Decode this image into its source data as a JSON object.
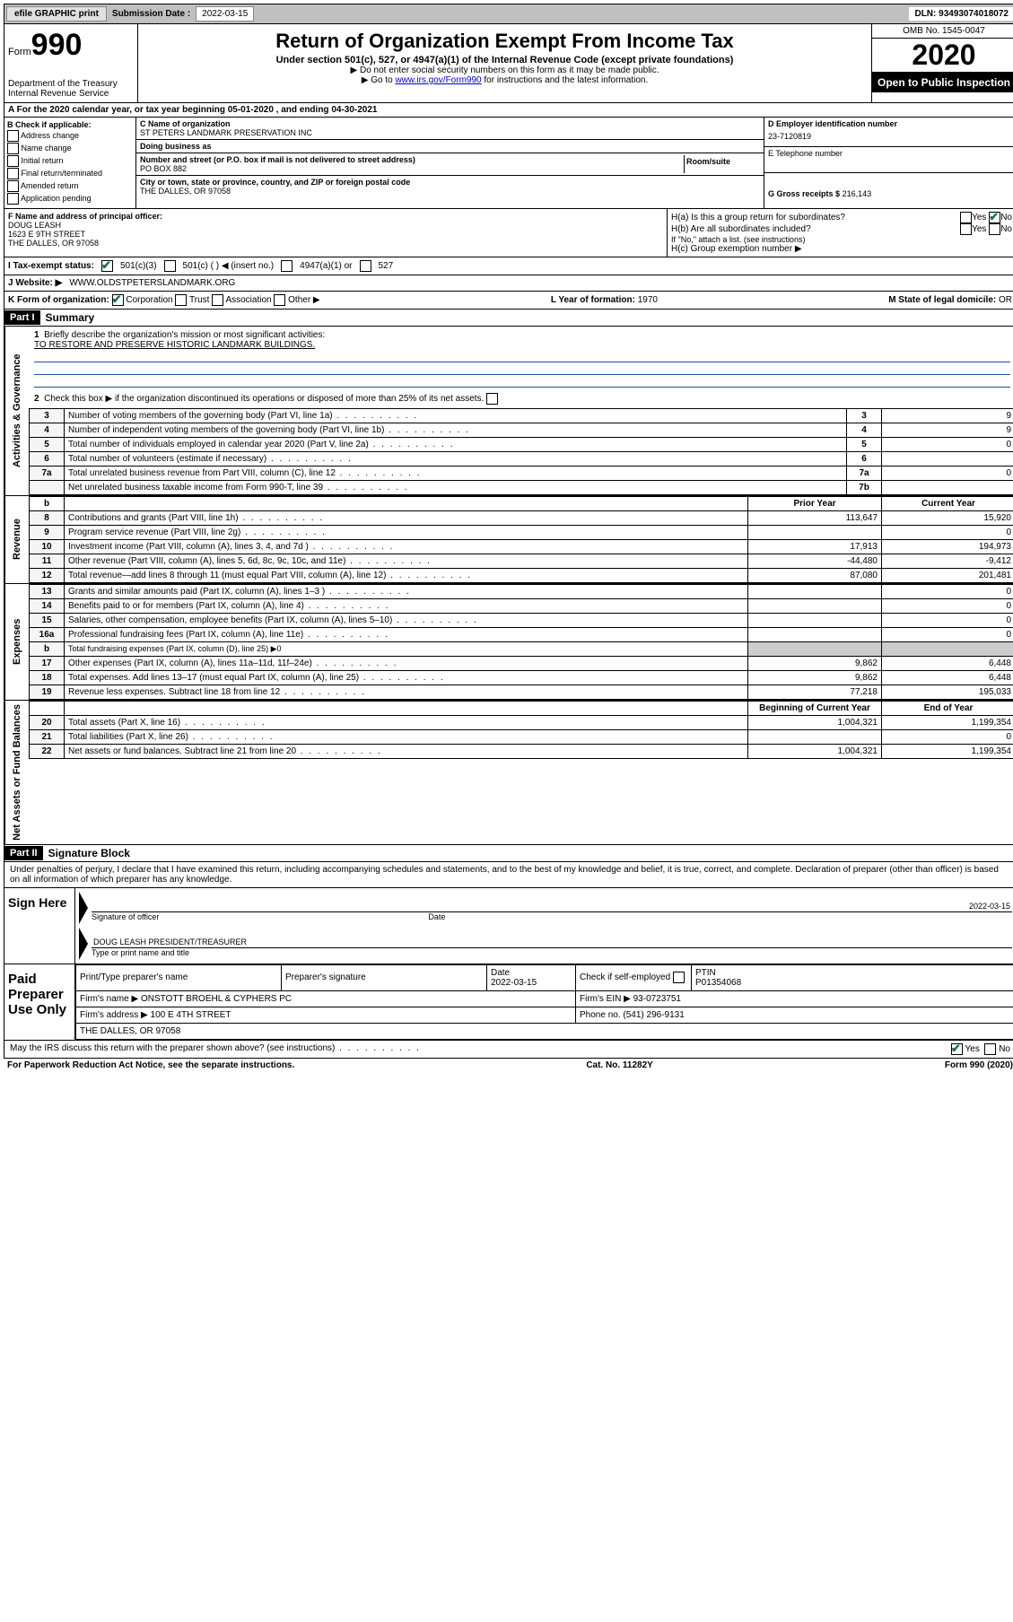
{
  "topbar": {
    "efile": "efile GRAPHIC print",
    "sub_label": "Submission Date :",
    "sub_date": "2022-03-15",
    "dln": "DLN: 93493074018072"
  },
  "header": {
    "form_word": "Form",
    "form_num": "990",
    "dept": "Department of the Treasury",
    "irs": "Internal Revenue Service",
    "title": "Return of Organization Exempt From Income Tax",
    "subtitle": "Under section 501(c), 527, or 4947(a)(1) of the Internal Revenue Code (except private foundations)",
    "note1": "▶ Do not enter social security numbers on this form as it may be made public.",
    "note2_pre": "▶ Go to ",
    "note2_link": "www.irs.gov/Form990",
    "note2_post": " for instructions and the latest information.",
    "omb": "OMB No. 1545-0047",
    "year": "2020",
    "inspection": "Open to Public Inspection"
  },
  "period": "A For the 2020 calendar year, or tax year beginning 05-01-2020   , and ending 04-30-2021",
  "box_b": {
    "title": "B Check if applicable:",
    "addr": "Address change",
    "name": "Name change",
    "initial": "Initial return",
    "final": "Final return/terminated",
    "amended": "Amended return",
    "pending": "Application pending"
  },
  "box_c": {
    "name_lbl": "C Name of organization",
    "name": "ST PETERS LANDMARK PRESERVATION INC",
    "dba_lbl": "Doing business as",
    "dba": "",
    "street_lbl": "Number and street (or P.O. box if mail is not delivered to street address)",
    "street": "PO BOX 882",
    "suite_lbl": "Room/suite",
    "city_lbl": "City or town, state or province, country, and ZIP or foreign postal code",
    "city": "THE DALLES, OR  97058"
  },
  "box_d": {
    "ein_lbl": "D Employer identification number",
    "ein": "23-7120819",
    "phone_lbl": "E Telephone number",
    "phone": "",
    "gross_lbl": "G Gross receipts $",
    "gross": "216,143"
  },
  "box_f": {
    "lbl": "F Name and address of principal officer:",
    "name": "DOUG LEASH",
    "street": "1623 E 9TH STREET",
    "city": "THE DALLES, OR  97058"
  },
  "box_h": {
    "ha": "H(a)  Is this a group return for subordinates?",
    "hb": "H(b)  Are all subordinates included?",
    "hb_note": "If \"No,\" attach a list. (see instructions)",
    "hc": "H(c)  Group exemption number ▶",
    "yes": "Yes",
    "no": "No"
  },
  "box_i": {
    "lbl": "I Tax-exempt status:",
    "o1": "501(c)(3)",
    "o2": "501(c) (  ) ◀ (insert no.)",
    "o3": "4947(a)(1) or",
    "o4": "527"
  },
  "box_j": {
    "lbl": "J Website: ▶",
    "val": "WWW.OLDSTPETERSLANDMARK.ORG"
  },
  "box_k": {
    "lbl": "K Form of organization:",
    "corp": "Corporation",
    "trust": "Trust",
    "assoc": "Association",
    "other": "Other ▶",
    "l_lbl": "L Year of formation:",
    "l_val": "1970",
    "m_lbl": "M State of legal domicile:",
    "m_val": "OR"
  },
  "part1": {
    "hdr": "Part I",
    "title": "Summary",
    "q1": "Briefly describe the organization's mission or most significant activities:",
    "mission": "TO RESTORE AND PRESERVE HISTORIC LANDMARK BUILDINGS.",
    "q2": "Check this box ▶       if the organization discontinued its operations or disposed of more than 25% of its net assets.",
    "side_gov": "Activities & Governance",
    "side_rev": "Revenue",
    "side_exp": "Expenses",
    "side_net": "Net Assets or Fund Balances"
  },
  "gov_rows": [
    {
      "n": "3",
      "t": "Number of voting members of the governing body (Part VI, line 1a)",
      "ln": "3",
      "v": "9"
    },
    {
      "n": "4",
      "t": "Number of independent voting members of the governing body (Part VI, line 1b)",
      "ln": "4",
      "v": "9"
    },
    {
      "n": "5",
      "t": "Total number of individuals employed in calendar year 2020 (Part V, line 2a)",
      "ln": "5",
      "v": "0"
    },
    {
      "n": "6",
      "t": "Total number of volunteers (estimate if necessary)",
      "ln": "6",
      "v": ""
    },
    {
      "n": "7a",
      "t": "Total unrelated business revenue from Part VIII, column (C), line 12",
      "ln": "7a",
      "v": "0"
    },
    {
      "n": "",
      "t": "Net unrelated business taxable income from Form 990-T, line 39",
      "ln": "7b",
      "v": ""
    }
  ],
  "rev_hdr": {
    "prior": "Prior Year",
    "current": "Current Year"
  },
  "rev_rows": [
    {
      "n": "8",
      "t": "Contributions and grants (Part VIII, line 1h)",
      "p": "113,647",
      "c": "15,920"
    },
    {
      "n": "9",
      "t": "Program service revenue (Part VIII, line 2g)",
      "p": "",
      "c": "0"
    },
    {
      "n": "10",
      "t": "Investment income (Part VIII, column (A), lines 3, 4, and 7d )",
      "p": "17,913",
      "c": "194,973"
    },
    {
      "n": "11",
      "t": "Other revenue (Part VIII, column (A), lines 5, 6d, 8c, 9c, 10c, and 11e)",
      "p": "-44,480",
      "c": "-9,412"
    },
    {
      "n": "12",
      "t": "Total revenue—add lines 8 through 11 (must equal Part VIII, column (A), line 12)",
      "p": "87,080",
      "c": "201,481"
    }
  ],
  "exp_rows": [
    {
      "n": "13",
      "t": "Grants and similar amounts paid (Part IX, column (A), lines 1–3 )",
      "p": "",
      "c": "0"
    },
    {
      "n": "14",
      "t": "Benefits paid to or for members (Part IX, column (A), line 4)",
      "p": "",
      "c": "0"
    },
    {
      "n": "15",
      "t": "Salaries, other compensation, employee benefits (Part IX, column (A), lines 5–10)",
      "p": "",
      "c": "0"
    },
    {
      "n": "16a",
      "t": "Professional fundraising fees (Part IX, column (A), line 11e)",
      "p": "",
      "c": "0"
    },
    {
      "n": "b",
      "t": "Total fundraising expenses (Part IX, column (D), line 25) ▶0",
      "p": "—",
      "c": "—"
    },
    {
      "n": "17",
      "t": "Other expenses (Part IX, column (A), lines 11a–11d, 11f–24e)",
      "p": "9,862",
      "c": "6,448"
    },
    {
      "n": "18",
      "t": "Total expenses. Add lines 13–17 (must equal Part IX, column (A), line 25)",
      "p": "9,862",
      "c": "6,448"
    },
    {
      "n": "19",
      "t": "Revenue less expenses. Subtract line 18 from line 12",
      "p": "77,218",
      "c": "195,033"
    }
  ],
  "net_hdr": {
    "begin": "Beginning of Current Year",
    "end": "End of Year"
  },
  "net_rows": [
    {
      "n": "20",
      "t": "Total assets (Part X, line 16)",
      "p": "1,004,321",
      "c": "1,199,354"
    },
    {
      "n": "21",
      "t": "Total liabilities (Part X, line 26)",
      "p": "",
      "c": "0"
    },
    {
      "n": "22",
      "t": "Net assets or fund balances. Subtract line 21 from line 20",
      "p": "1,004,321",
      "c": "1,199,354"
    }
  ],
  "part2": {
    "hdr": "Part II",
    "title": "Signature Block",
    "decl": "Under penalties of perjury, I declare that I have examined this return, including accompanying schedules and statements, and to the best of my knowledge and belief, it is true, correct, and complete. Declaration of preparer (other than officer) is based on all information of which preparer has any knowledge."
  },
  "sign": {
    "here": "Sign Here",
    "sig_lbl": "Signature of officer",
    "date_lbl": "Date",
    "date": "2022-03-15",
    "name": "DOUG LEASH  PRESIDENT/TREASURER",
    "name_lbl": "Type or print name and title"
  },
  "paid": {
    "title": "Paid Preparer Use Only",
    "print_lbl": "Print/Type preparer's name",
    "sig_lbl": "Preparer's signature",
    "date_lbl": "Date",
    "date": "2022-03-15",
    "check_lbl": "Check        if self-employed",
    "ptin_lbl": "PTIN",
    "ptin": "P01354068",
    "firm_name_lbl": "Firm's name    ▶",
    "firm_name": "ONSTOTT BROEHL & CYPHERS PC",
    "firm_ein_lbl": "Firm's EIN ▶",
    "firm_ein": "93-0723751",
    "firm_addr_lbl": "Firm's address ▶",
    "firm_addr1": "100 E 4TH STREET",
    "firm_addr2": "THE DALLES, OR  97058",
    "phone_lbl": "Phone no.",
    "phone": "(541) 296-9131"
  },
  "discuss": {
    "q": "May the IRS discuss this return with the preparer shown above? (see instructions)",
    "yes": "Yes",
    "no": "No"
  },
  "footer": {
    "left": "For Paperwork Reduction Act Notice, see the separate instructions.",
    "mid": "Cat. No. 11282Y",
    "right": "Form 990 (2020)"
  }
}
